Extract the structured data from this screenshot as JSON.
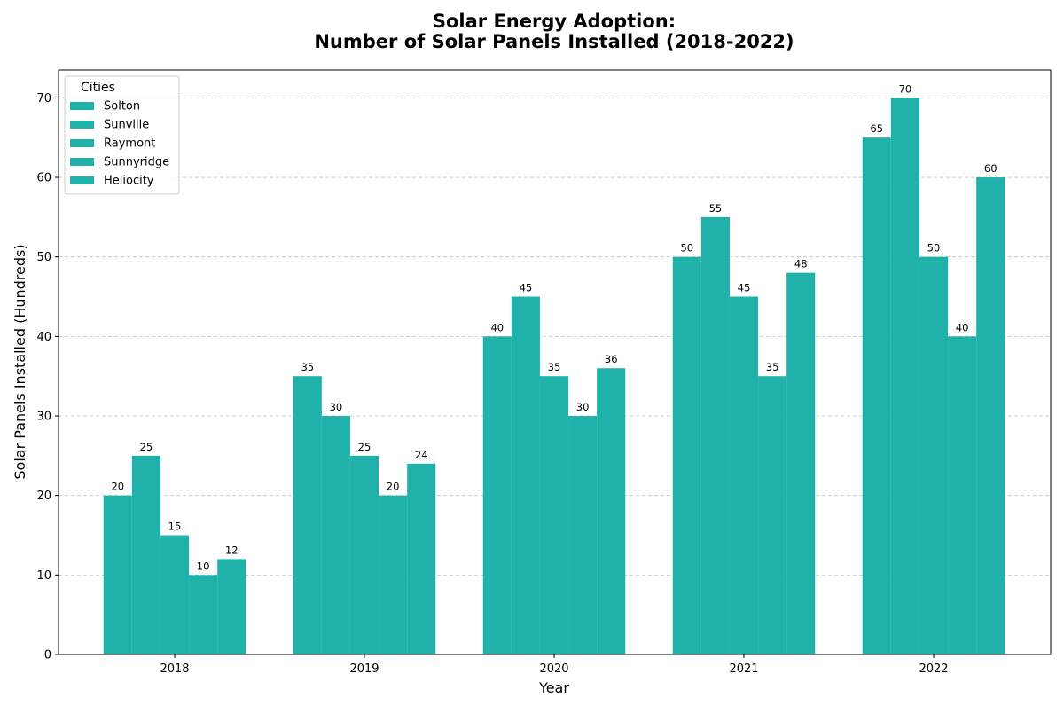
{
  "chart_data": {
    "type": "bar",
    "title_line1": "Solar Energy Adoption:",
    "title_line2": "Number of Solar Panels Installed (2018-2022)",
    "xlabel": "Year",
    "ylabel": "Solar Panels Installed (Hundreds)",
    "categories": [
      "2018",
      "2019",
      "2020",
      "2021",
      "2022"
    ],
    "ylim": [
      0,
      73.5
    ],
    "yticks": [
      0,
      10,
      20,
      30,
      40,
      50,
      60,
      70
    ],
    "grid": "y-dashed",
    "bar_color": "#20b2aa",
    "legend": {
      "title": "Cities",
      "position": "top-left"
    },
    "series": [
      {
        "name": "Solton",
        "values": [
          20,
          35,
          40,
          50,
          65
        ]
      },
      {
        "name": "Sunville",
        "values": [
          25,
          30,
          45,
          55,
          70
        ]
      },
      {
        "name": "Raymont",
        "values": [
          15,
          25,
          35,
          45,
          50
        ]
      },
      {
        "name": "Sunnyridge",
        "values": [
          10,
          20,
          30,
          35,
          40
        ]
      },
      {
        "name": "Heliocity",
        "values": [
          12,
          24,
          36,
          48,
          60
        ]
      }
    ]
  }
}
